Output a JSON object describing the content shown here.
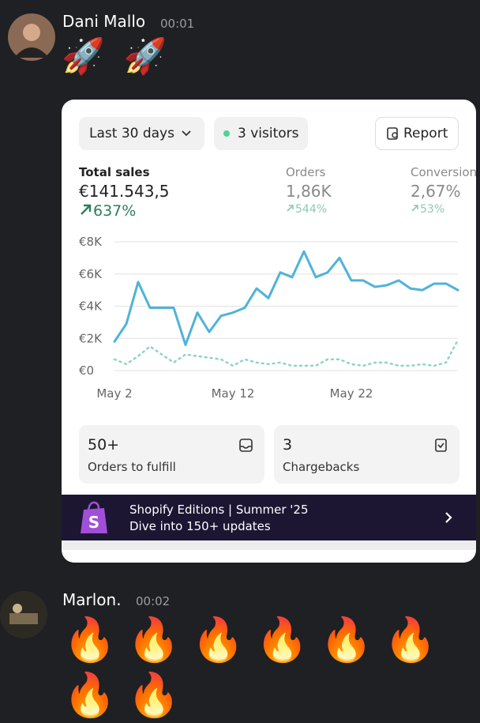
{
  "messages": [
    {
      "author": "Dani Mallo",
      "time": "00:01",
      "emojis": [
        "🚀",
        "🚀"
      ]
    },
    {
      "author": "Marlon.",
      "time": "00:02",
      "emojis": [
        "🔥",
        "🔥",
        "🔥",
        "🔥",
        "🔥",
        "🔥",
        "🔥",
        "🔥"
      ]
    }
  ],
  "card": {
    "filter": "Last 30 days",
    "visitors": "3 visitors",
    "report": "Report",
    "metrics": [
      {
        "label": "Total sales",
        "value": "€141.543,5",
        "change": "637%"
      },
      {
        "label": "Orders",
        "value": "1,86K",
        "change": "544%"
      },
      {
        "label": "Conversion",
        "value": "2,67%",
        "change": "53%"
      }
    ],
    "chart": {
      "type": "line",
      "categories": [
        "May 2",
        null,
        null,
        null,
        null,
        null,
        null,
        null,
        null,
        null,
        "May 12",
        null,
        null,
        null,
        null,
        null,
        null,
        null,
        null,
        null,
        "May 22",
        null,
        null,
        null,
        null,
        null,
        null,
        null,
        null,
        null
      ],
      "series": [
        {
          "color": "#4fb3d9",
          "values": [
            1800,
            2900,
            5500,
            3900,
            3900,
            3900,
            1600,
            3600,
            2400,
            3400,
            3600,
            3900,
            5100,
            4500,
            6100,
            5800,
            7400,
            5800,
            6100,
            7000,
            5600,
            5600,
            5200,
            5300,
            5600,
            5100,
            5000,
            5400,
            5400,
            5000
          ]
        },
        {
          "color": "#8fd3c5",
          "values": [
            700,
            400,
            900,
            1500,
            1000,
            500,
            1000,
            900,
            800,
            700,
            300,
            700,
            500,
            400,
            500,
            300,
            300,
            300,
            700,
            700,
            400,
            300,
            500,
            500,
            300,
            300,
            400,
            300,
            500,
            1900
          ]
        }
      ],
      "ylim": [
        0,
        8000
      ],
      "yticks": [
        {
          "value": 0,
          "label": "€0"
        },
        {
          "value": 2000,
          "label": "€2K"
        },
        {
          "value": 4000,
          "label": "€4K"
        },
        {
          "value": 6000,
          "label": "€6K"
        },
        {
          "value": 8000,
          "label": "€8K"
        }
      ],
      "grid": true
    },
    "tiles": [
      {
        "value": "50+",
        "label": "Orders to fulfill"
      },
      {
        "value": "3",
        "label": "Chargebacks"
      }
    ],
    "banner": {
      "line1": "Shopify Editions | Summer '25",
      "line2": "Dive into 150+ updates"
    }
  }
}
